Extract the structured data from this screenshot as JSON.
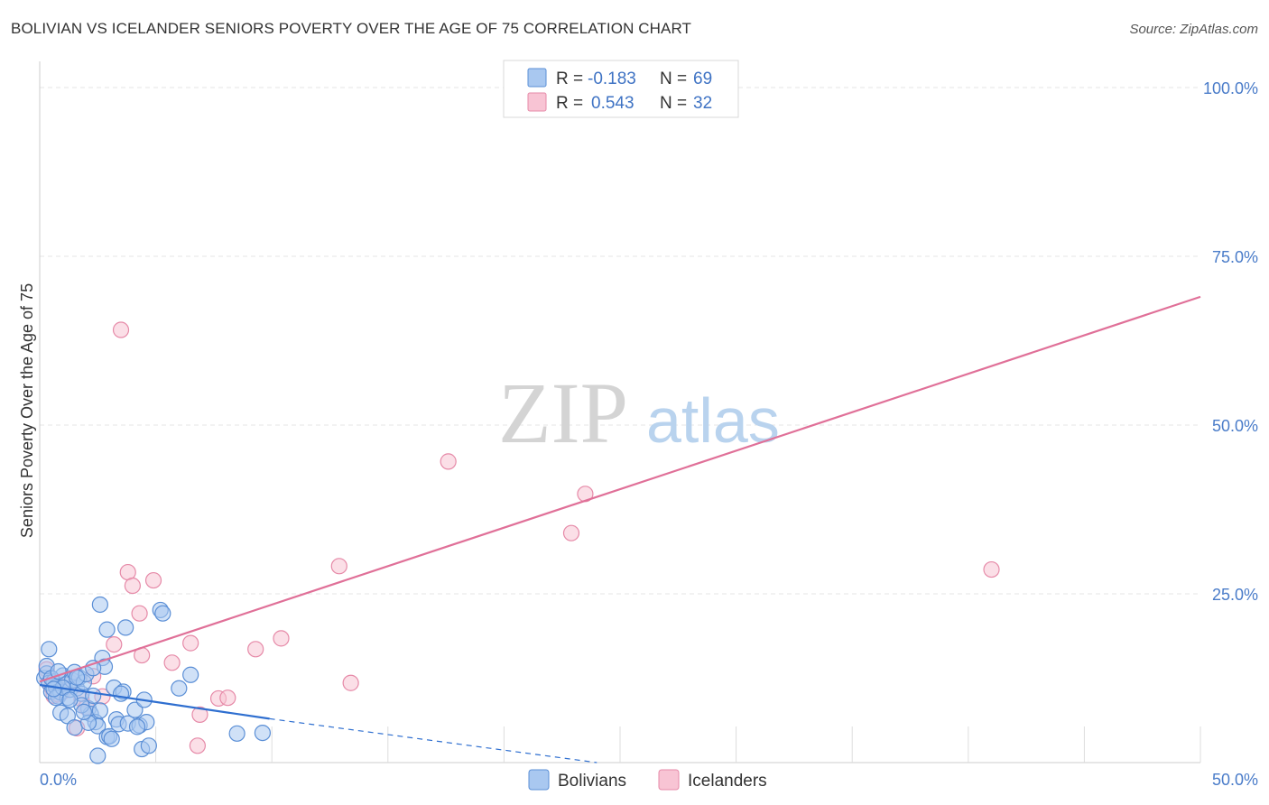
{
  "title": "BOLIVIAN VS ICELANDER SENIORS POVERTY OVER THE AGE OF 75 CORRELATION CHART",
  "source": "Source: ZipAtlas.com",
  "watermark": {
    "zip": "ZIP",
    "atlas": "atlas"
  },
  "colors": {
    "bolivians_fill": "#a9c8f0",
    "bolivians_stroke": "#5b8fd6",
    "bolivians_line": "#2f6fd0",
    "icelanders_fill": "#f8c4d4",
    "icelanders_stroke": "#e68aa8",
    "icelanders_line": "#e07098",
    "grid": "#e6e6e6",
    "tick_text": "#4a7cc9"
  },
  "chart_data": {
    "type": "scatter",
    "title": "BOLIVIAN VS ICELANDER SENIORS POVERTY OVER THE AGE OF 75 CORRELATION CHART",
    "xlabel": "",
    "ylabel": "Seniors Poverty Over the Age of 75",
    "xlim": [
      0,
      50
    ],
    "ylim": [
      0,
      100
    ],
    "x_tick_labels": [
      "0.0%",
      "50.0%"
    ],
    "y_ticks": [
      {
        "value": 25,
        "label": "25.0%"
      },
      {
        "value": 50,
        "label": "50.0%"
      },
      {
        "value": 75,
        "label": "75.0%"
      },
      {
        "value": 100,
        "label": "100.0%"
      }
    ],
    "grid": true,
    "legend": {
      "position": "top-center",
      "entries": [
        {
          "r_label": "R =",
          "r_value": "-0.183",
          "n_label": "N =",
          "n_value": "69"
        },
        {
          "r_label": "R =",
          "r_value": "0.543",
          "n_label": "N =",
          "n_value": "32"
        }
      ]
    },
    "series_legend": [
      "Bolivians",
      "Icelanders"
    ],
    "series": [
      {
        "name": "Bolivians",
        "trend": {
          "x1": 0,
          "y1": 11.5,
          "x2": 9.9,
          "y2": 6.5,
          "dash_to_x": 24,
          "dash_to_y": 0
        },
        "points": [
          [
            0.2,
            12.5
          ],
          [
            0.3,
            13.2
          ],
          [
            0.4,
            11.8
          ],
          [
            0.5,
            10.5
          ],
          [
            0.6,
            12.0
          ],
          [
            0.7,
            11.2
          ],
          [
            0.8,
            9.8
          ],
          [
            0.9,
            10.4
          ],
          [
            1.0,
            12.9
          ],
          [
            1.1,
            11.6
          ],
          [
            1.2,
            9.6
          ],
          [
            1.3,
            10.8
          ],
          [
            1.4,
            12.2
          ],
          [
            1.5,
            13.4
          ],
          [
            1.6,
            11.0
          ],
          [
            1.7,
            12.6
          ],
          [
            1.8,
            10.2
          ],
          [
            1.9,
            11.9
          ],
          [
            2.0,
            13.1
          ],
          [
            2.1,
            8.0
          ],
          [
            2.2,
            7.2
          ],
          [
            2.3,
            9.9
          ],
          [
            2.4,
            6.0
          ],
          [
            2.5,
            5.4
          ],
          [
            2.6,
            7.7
          ],
          [
            2.7,
            15.5
          ],
          [
            2.8,
            14.2
          ],
          [
            2.9,
            3.8
          ],
          [
            3.0,
            3.9
          ],
          [
            3.2,
            11.1
          ],
          [
            3.3,
            6.4
          ],
          [
            3.4,
            5.7
          ],
          [
            3.6,
            10.5
          ],
          [
            3.7,
            20.0
          ],
          [
            3.8,
            5.8
          ],
          [
            4.1,
            7.8
          ],
          [
            4.3,
            5.5
          ],
          [
            4.4,
            2.0
          ],
          [
            4.5,
            9.3
          ],
          [
            4.6,
            6.0
          ],
          [
            4.7,
            2.5
          ],
          [
            5.2,
            22.6
          ],
          [
            5.3,
            22.1
          ],
          [
            6.0,
            11.0
          ],
          [
            6.5,
            13.0
          ],
          [
            8.5,
            4.3
          ],
          [
            9.6,
            4.4
          ],
          [
            0.3,
            14.3
          ],
          [
            0.4,
            16.8
          ],
          [
            0.5,
            12.5
          ],
          [
            0.7,
            9.6
          ],
          [
            0.9,
            7.4
          ],
          [
            1.2,
            6.9
          ],
          [
            1.5,
            5.2
          ],
          [
            1.8,
            8.5
          ],
          [
            2.1,
            5.9
          ],
          [
            2.6,
            23.4
          ],
          [
            2.9,
            19.7
          ],
          [
            3.1,
            3.5
          ],
          [
            3.5,
            10.2
          ],
          [
            4.2,
            5.3
          ],
          [
            2.5,
            1.0
          ],
          [
            1.0,
            11.1
          ],
          [
            1.6,
            12.6
          ],
          [
            2.3,
            14.0
          ],
          [
            0.6,
            10.9
          ],
          [
            1.3,
            9.3
          ],
          [
            1.9,
            7.5
          ],
          [
            0.8,
            13.5
          ]
        ]
      },
      {
        "name": "Icelanders",
        "trend": {
          "x1": 0,
          "y1": 12.0,
          "x2": 50,
          "y2": 69.0
        },
        "points": [
          [
            0.3,
            13.8
          ],
          [
            0.5,
            11.2
          ],
          [
            0.6,
            9.9
          ],
          [
            0.8,
            10.1
          ],
          [
            1.0,
            10.5
          ],
          [
            1.3,
            11.9
          ],
          [
            1.6,
            5.1
          ],
          [
            1.8,
            9.4
          ],
          [
            2.0,
            8.2
          ],
          [
            2.3,
            12.8
          ],
          [
            2.7,
            9.8
          ],
          [
            3.2,
            17.5
          ],
          [
            3.8,
            28.2
          ],
          [
            4.0,
            26.2
          ],
          [
            4.3,
            22.1
          ],
          [
            4.4,
            15.9
          ],
          [
            3.5,
            64.1
          ],
          [
            4.9,
            27.0
          ],
          [
            5.7,
            14.8
          ],
          [
            6.5,
            17.7
          ],
          [
            6.8,
            2.5
          ],
          [
            6.9,
            7.1
          ],
          [
            7.7,
            9.5
          ],
          [
            8.1,
            9.6
          ],
          [
            9.3,
            16.8
          ],
          [
            10.4,
            18.4
          ],
          [
            12.9,
            29.1
          ],
          [
            13.4,
            11.8
          ],
          [
            17.6,
            44.6
          ],
          [
            22.9,
            34.0
          ],
          [
            23.5,
            39.8
          ],
          [
            41.0,
            28.6
          ]
        ]
      }
    ]
  }
}
